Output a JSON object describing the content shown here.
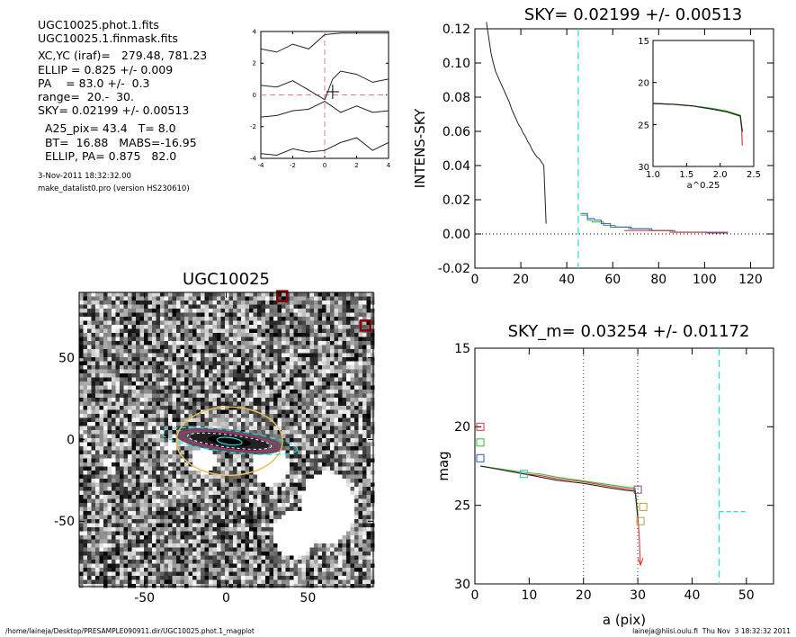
{
  "info_text": {
    "l1": "UGC10025.phot.1.fits",
    "l2": "UGC10025.1.finmask.fits",
    "l3": "XC,YC (iraf)=   279.48, 781.23",
    "l4": "ELLIP = 0.825 +/- 0.009",
    "l5": "PA    = 83.0 +/-  0.3",
    "l6": "range=  20.-  30.",
    "l7": "SKY= 0.02199 +/- 0.00513",
    "l8": "  A25_pix= 43.4   T= 8.0",
    "l9": "  BT=  16.88   MABS=-16.95",
    "l10": "  ELLIP, PA= 0.875   82.0",
    "l11": "3-Nov-2011 18:32:32.00",
    "l12": "make_datalist0.pro (version HS230610)"
  },
  "footer": {
    "left": "/home/laineja/Desktop/PRESAMPLE090911.dir/UGC10025.phot.1_magplot",
    "right": "laineja@hiisi.oulu.fi  Thu Nov  3 18:32:32 2011"
  },
  "colors": {
    "sky_dash": "#22dddd",
    "red": "#ee3333",
    "green": "#33bb33",
    "blue": "#3355cc",
    "yellow": "#e8c060",
    "magenta": "#cc2288",
    "dark_red": "#880000"
  },
  "chart_data": [
    {
      "id": "center_plot",
      "type": "line",
      "title": "",
      "xlim": [
        -4,
        4
      ],
      "ylim": [
        -4,
        4
      ],
      "xticks": [
        "-4",
        "-2",
        "0",
        "2",
        "4"
      ],
      "yticks": [
        "-4",
        "-2",
        "0",
        "2",
        "4"
      ],
      "crosshair": [
        0.5,
        0.2
      ],
      "dashed_lines": {
        "x": 0,
        "y": 0
      },
      "contours": [
        [
          [
            -4,
            2.9
          ],
          [
            -3,
            2.7
          ],
          [
            -2,
            3.2
          ],
          [
            -1,
            2.9
          ],
          [
            0,
            3.8
          ],
          [
            1,
            3.9
          ],
          [
            2,
            3.9
          ],
          [
            3,
            3.9
          ],
          [
            4,
            3.9
          ]
        ],
        [
          [
            -4,
            0.6
          ],
          [
            -3,
            0.5
          ],
          [
            -2,
            0.9
          ],
          [
            -1,
            0.3
          ],
          [
            0,
            -0.3
          ],
          [
            0.5,
            1.0
          ],
          [
            1,
            1.5
          ],
          [
            2,
            1.3
          ],
          [
            3,
            0.8
          ],
          [
            4,
            1.0
          ]
        ],
        [
          [
            -4,
            -1.4
          ],
          [
            -3,
            -1.3
          ],
          [
            -2,
            -1.0
          ],
          [
            -1,
            -0.9
          ],
          [
            0,
            -0.4
          ],
          [
            1,
            -1.1
          ],
          [
            2,
            -0.7
          ],
          [
            3,
            -1.1
          ],
          [
            4,
            -1.0
          ]
        ],
        [
          [
            -4,
            -3.7
          ],
          [
            -3,
            -3.8
          ],
          [
            -2,
            -3.4
          ],
          [
            -1,
            -3.6
          ],
          [
            0,
            -3.5
          ],
          [
            1,
            -3.0
          ],
          [
            2,
            -2.7
          ],
          [
            3,
            -3.5
          ],
          [
            4,
            -3.0
          ]
        ]
      ]
    },
    {
      "id": "intens_sky",
      "type": "line",
      "title": "SKY= 0.02199 +/- 0.00513",
      "ylabel": "INTENS-SKY",
      "xlabel": "",
      "xlim": [
        0,
        130
      ],
      "ylim": [
        -0.02,
        0.12
      ],
      "xticks": [
        "0",
        "20",
        "40",
        "60",
        "80",
        "100",
        "120"
      ],
      "yticks": [
        "-0.02",
        "0.00",
        "0.02",
        "0.04",
        "0.06",
        "0.08",
        "0.10",
        "0.12"
      ],
      "sky_radius": 45,
      "series": [
        {
          "color": "#222222",
          "points": [
            [
              5,
              0.124
            ],
            [
              6,
              0.115
            ],
            [
              7,
              0.106
            ],
            [
              8,
              0.1
            ],
            [
              9,
              0.095
            ],
            [
              10,
              0.092
            ],
            [
              11,
              0.089
            ],
            [
              12,
              0.086
            ],
            [
              13,
              0.083
            ],
            [
              14,
              0.08
            ],
            [
              15,
              0.077
            ],
            [
              16,
              0.073
            ],
            [
              17,
              0.07
            ],
            [
              18,
              0.067
            ],
            [
              19,
              0.064
            ],
            [
              20,
              0.062
            ],
            [
              21,
              0.059
            ],
            [
              22,
              0.057
            ],
            [
              23,
              0.054
            ],
            [
              24,
              0.052
            ],
            [
              25,
              0.049
            ],
            [
              26,
              0.047
            ],
            [
              27,
              0.045
            ],
            [
              28,
              0.044
            ],
            [
              29,
              0.042
            ],
            [
              30,
              0.04
            ],
            [
              31,
              0.006
            ]
          ]
        },
        {
          "color": "#33bb33",
          "points": [
            [
              46,
              0.011
            ],
            [
              48,
              0.011
            ],
            [
              49,
              0.008
            ],
            [
              50,
              0.008
            ],
            [
              51,
              0.007
            ],
            [
              55,
              0.007
            ],
            [
              56,
              0.005
            ],
            [
              60,
              0.005
            ],
            [
              61,
              0.004
            ],
            [
              66,
              0.004
            ],
            [
              67,
              0.003
            ],
            [
              75,
              0.003
            ],
            [
              76,
              0.002
            ],
            [
              85,
              0.002
            ],
            [
              86,
              0.001
            ],
            [
              100,
              0.001
            ],
            [
              101,
              0.001
            ],
            [
              110,
              0.001
            ]
          ]
        },
        {
          "color": "#3355cc",
          "points": [
            [
              46,
              0.012
            ],
            [
              48,
              0.012
            ],
            [
              49,
              0.009
            ],
            [
              51,
              0.009
            ],
            [
              52,
              0.008
            ],
            [
              54,
              0.008
            ],
            [
              55,
              0.006
            ],
            [
              58,
              0.006
            ],
            [
              59,
              0.004
            ],
            [
              67,
              0.004
            ],
            [
              68,
              0.003
            ],
            [
              76,
              0.003
            ],
            [
              77,
              0.002
            ],
            [
              86,
              0.002
            ],
            [
              87,
              0.001
            ],
            [
              100,
              0.001
            ],
            [
              101,
              0.0005
            ],
            [
              110,
              0.0005
            ]
          ]
        },
        {
          "color": "#ee3333",
          "points": [
            [
              65,
              0.002
            ],
            [
              75,
              0.002
            ],
            [
              85,
              0.001
            ],
            [
              110,
              0.0005
            ]
          ]
        }
      ]
    },
    {
      "id": "inset",
      "type": "line",
      "xlabel": "a^0.25",
      "xlim": [
        1.0,
        2.5
      ],
      "ylim": [
        15,
        30
      ],
      "xticks": [
        "1.0",
        "1.5",
        "2.0",
        "2.5"
      ],
      "yticks": [
        "15",
        "20",
        "25",
        "30"
      ],
      "series": [
        {
          "color": "#ee3333",
          "points": [
            [
              1,
              22.5
            ],
            [
              1.3,
              22.6
            ],
            [
              1.6,
              22.8
            ],
            [
              1.9,
              23.2
            ],
            [
              2.1,
              23.5
            ],
            [
              2.3,
              24.0
            ],
            [
              2.32,
              25.5
            ],
            [
              2.33,
              27.5
            ]
          ]
        },
        {
          "color": "#33bb33",
          "points": [
            [
              1,
              22.5
            ],
            [
              1.3,
              22.6
            ],
            [
              1.6,
              22.8
            ],
            [
              1.9,
              23.1
            ],
            [
              2.1,
              23.4
            ],
            [
              2.3,
              23.9
            ],
            [
              2.33,
              26.0
            ]
          ]
        },
        {
          "color": "#222222",
          "points": [
            [
              1,
              22.5
            ],
            [
              1.3,
              22.6
            ],
            [
              1.6,
              22.8
            ],
            [
              1.9,
              23.2
            ],
            [
              2.1,
              23.5
            ],
            [
              2.3,
              24.0
            ],
            [
              2.33,
              25.8
            ]
          ]
        }
      ]
    },
    {
      "id": "image",
      "type": "heatmap",
      "title": "UGC10025",
      "xlim": [
        -90,
        90
      ],
      "ylim": [
        -90,
        90
      ],
      "xticks": [
        "-50",
        "0",
        "50"
      ],
      "yticks": [
        "-50",
        "0",
        "50"
      ]
    },
    {
      "id": "mag_profile",
      "type": "line",
      "title": "SKY_m=  0.03254 +/- 0.01172",
      "xlabel": "a (pix)",
      "ylabel": "mag",
      "xlim": [
        0,
        55
      ],
      "ylim": [
        30,
        15
      ],
      "xticks": [
        "0",
        "10",
        "20",
        "30",
        "40",
        "50"
      ],
      "yticks": [
        "15",
        "20",
        "25",
        "30"
      ],
      "vlines_dotted": [
        20,
        30
      ],
      "vline_dashed": 45,
      "series": [
        {
          "color": "#ee3333",
          "points": [
            [
              1,
              22.5
            ],
            [
              5,
              22.7
            ],
            [
              9,
              23.0
            ],
            [
              12,
              23.1
            ],
            [
              15,
              23.3
            ],
            [
              20,
              23.5
            ],
            [
              25,
              23.8
            ],
            [
              28,
              23.95
            ],
            [
              29.5,
              24.0
            ],
            [
              30,
              25.6
            ],
            [
              30.3,
              27.2
            ],
            [
              30.5,
              28.8
            ]
          ]
        },
        {
          "color": "#33bb33",
          "points": [
            [
              1,
              22.5
            ],
            [
              5,
              22.7
            ],
            [
              9,
              22.9
            ],
            [
              12,
              23.0
            ],
            [
              15,
              23.2
            ],
            [
              20,
              23.45
            ],
            [
              25,
              23.7
            ],
            [
              28,
              23.85
            ],
            [
              29.5,
              23.9
            ],
            [
              30,
              25.5
            ]
          ]
        },
        {
          "color": "#222222",
          "points": [
            [
              1,
              22.5
            ],
            [
              5,
              22.75
            ],
            [
              9,
              23.0
            ],
            [
              12,
              23.2
            ],
            [
              15,
              23.4
            ],
            [
              20,
              23.6
            ],
            [
              25,
              23.9
            ],
            [
              28,
              24.05
            ],
            [
              29.5,
              24.1
            ],
            [
              30,
              25.8
            ]
          ]
        }
      ],
      "markers": [
        {
          "x": 1,
          "y": 20.0,
          "color": "#ee3333"
        },
        {
          "x": 1,
          "y": 21.0,
          "color": "#33bb33"
        },
        {
          "x": 1,
          "y": 22.0,
          "color": "#3355cc"
        },
        {
          "x": 9,
          "y": 23.0,
          "color": "#33bbbb"
        },
        {
          "x": 30,
          "y": 24.0,
          "color": "#884488"
        },
        {
          "x": 31,
          "y": 25.1,
          "color": "#cc9933"
        },
        {
          "x": 30.5,
          "y": 26.0,
          "color": "#99aa44"
        }
      ],
      "sky_segment": {
        "x0": 45,
        "x1": 50,
        "y": 25.4
      }
    }
  ]
}
